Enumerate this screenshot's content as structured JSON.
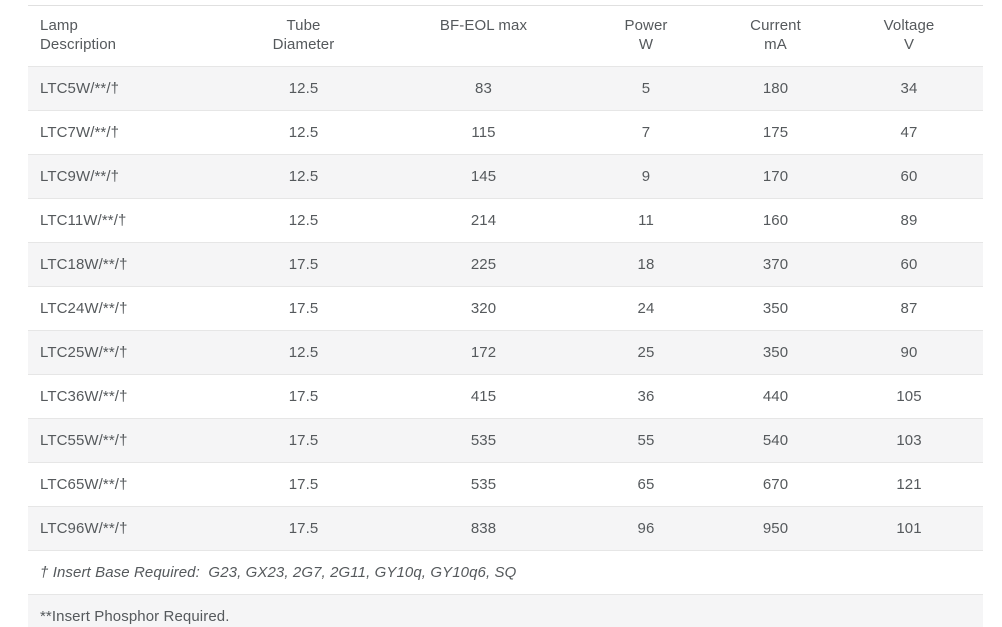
{
  "colors": {
    "row_stripe": "#f5f5f6",
    "border": "#e2e2e2",
    "text": "#55595c",
    "background": "#ffffff"
  },
  "table": {
    "columns": [
      {
        "line1": "Lamp",
        "line2": "Description"
      },
      {
        "line1": "Tube",
        "line2": "Diameter"
      },
      {
        "line1": "BF-EOL max",
        "line2": ""
      },
      {
        "line1": "Power",
        "line2": "W"
      },
      {
        "line1": "Current",
        "line2": "mA"
      },
      {
        "line1": "Voltage",
        "line2": "V"
      }
    ],
    "rows": [
      [
        "LTC5W/**/†",
        "12.5",
        "83",
        "5",
        "180",
        "34"
      ],
      [
        "LTC7W/**/†",
        "12.5",
        "115",
        "7",
        "175",
        "47"
      ],
      [
        "LTC9W/**/†",
        "12.5",
        "145",
        "9",
        "170",
        "60"
      ],
      [
        "LTC11W/**/†",
        "12.5",
        "214",
        "11",
        "160",
        "89"
      ],
      [
        "LTC18W/**/†",
        "17.5",
        "225",
        "18",
        "370",
        "60"
      ],
      [
        "LTC24W/**/†",
        "17.5",
        "320",
        "24",
        "350",
        "87"
      ],
      [
        "LTC25W/**/†",
        "12.5",
        "172",
        "25",
        "350",
        "90"
      ],
      [
        "LTC36W/**/†",
        "17.5",
        "415",
        "36",
        "440",
        "105"
      ],
      [
        "LTC55W/**/†",
        "17.5",
        "535",
        "55",
        "540",
        "103"
      ],
      [
        "LTC65W/**/†",
        "17.5",
        "535",
        "65",
        "670",
        "121"
      ],
      [
        "LTC96W/**/†",
        "17.5",
        "838",
        "96",
        "950",
        "101"
      ]
    ],
    "footnotes": [
      "† Insert Base Required:  G23, GX23, 2G7, 2G11, GY10q, GY10q6, SQ",
      "**Insert Phosphor Required."
    ]
  }
}
